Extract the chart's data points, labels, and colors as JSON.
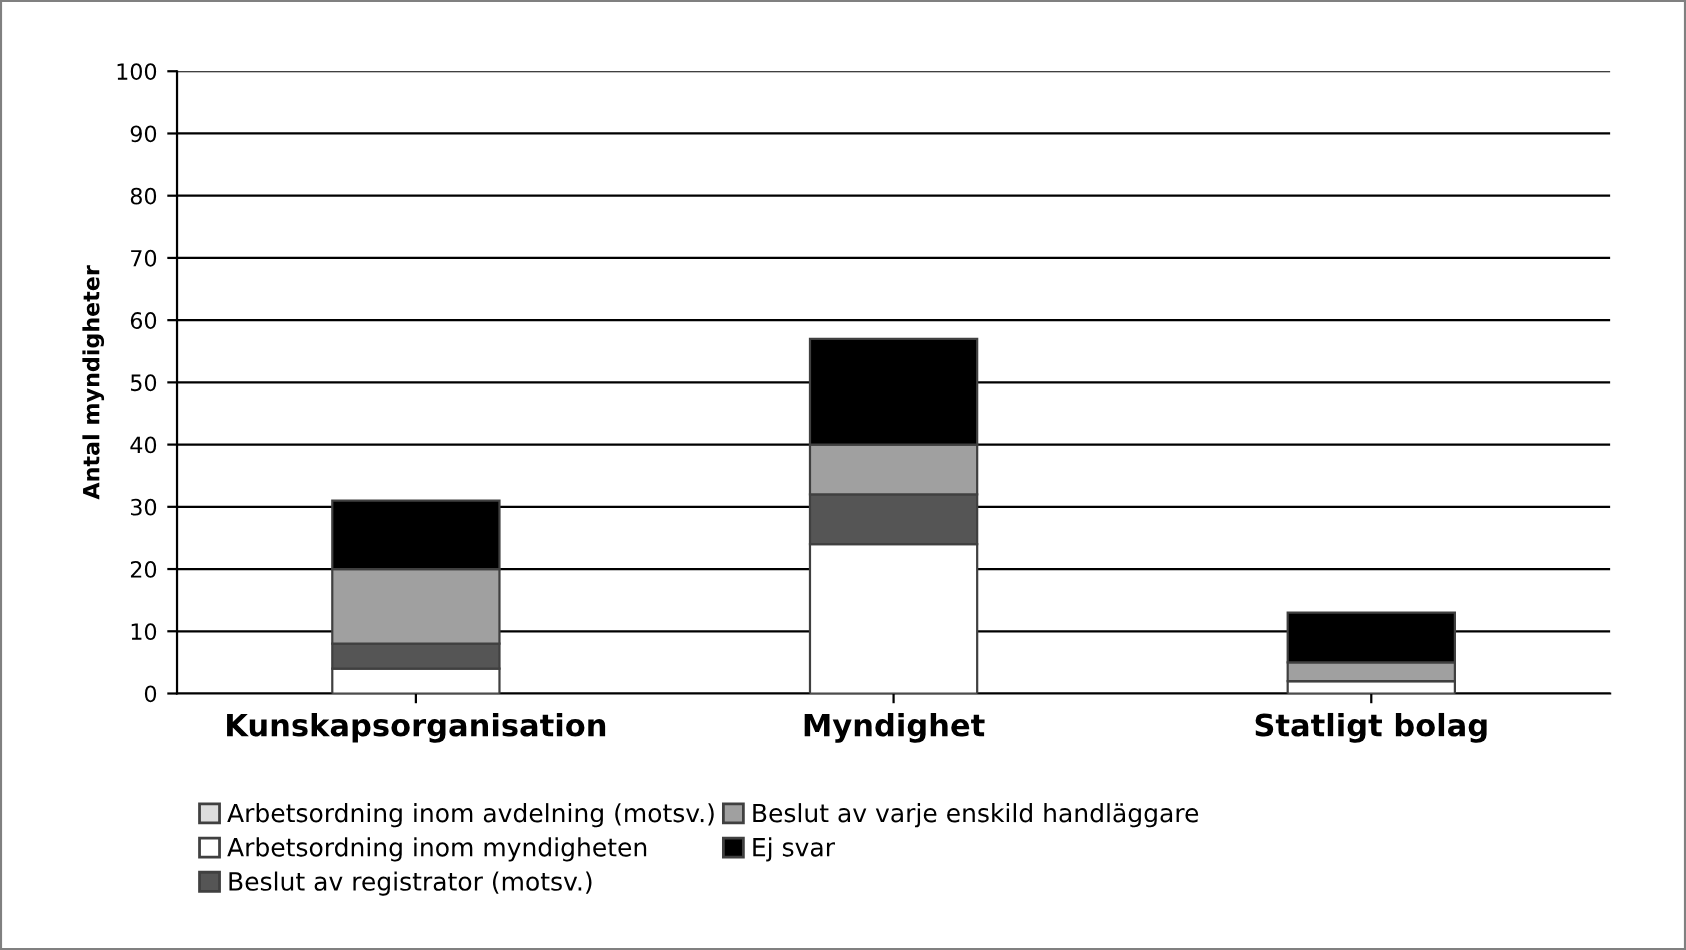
{
  "chart_data": {
    "type": "bar",
    "stacked": true,
    "ylabel": "Antal myndigheter",
    "categories": [
      "Kunskapsorganisation",
      "Myndighet",
      "Statligt bolag"
    ],
    "series": [
      {
        "name": "Arbetsordning inom avdelning (motsv.)",
        "color": "#dddddd",
        "values": [
          0,
          0,
          0
        ]
      },
      {
        "name": "Arbetsordning inom myndigheten",
        "color": "#ffffff",
        "values": [
          4,
          24,
          2
        ]
      },
      {
        "name": "Beslut av registrator (motsv.)",
        "color": "#555555",
        "values": [
          4,
          8,
          0
        ]
      },
      {
        "name": "Beslut av varje enskild handläggare",
        "color": "#a0a0a0",
        "values": [
          12,
          8,
          3
        ]
      },
      {
        "name": "Ej svar",
        "color": "#000000",
        "values": [
          11,
          17,
          8
        ]
      }
    ],
    "ylim": [
      0,
      100
    ],
    "yticks": [
      0,
      10,
      20,
      30,
      40,
      50,
      60,
      70,
      80,
      90,
      100
    ],
    "grid": "y",
    "legend": "bottom left"
  }
}
